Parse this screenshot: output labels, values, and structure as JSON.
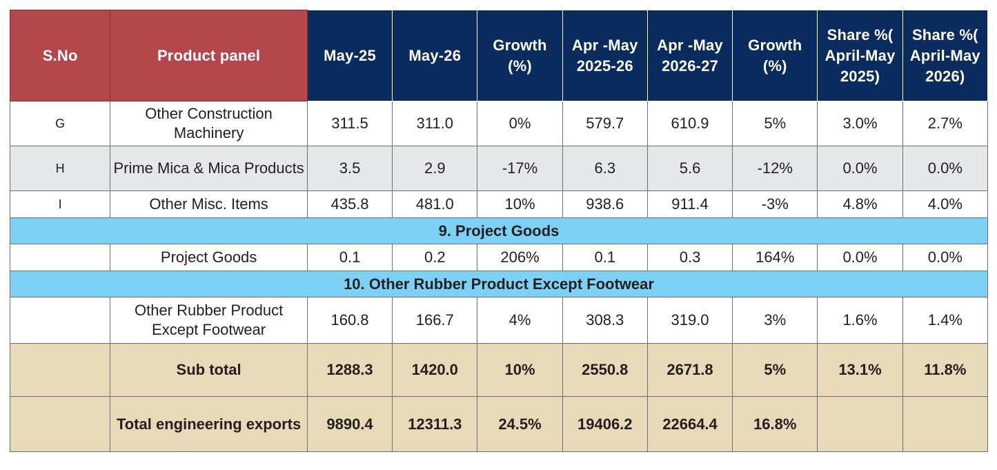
{
  "header": {
    "sno": "S.No",
    "product": "Product panel",
    "may25": "May-25",
    "may26": "May-26",
    "growth1": "Growth (%)",
    "aprmay2526": "Apr -May 2025-26",
    "aprmay2627": "Apr -May 2026-27",
    "growth2": "Growth (%)",
    "share2025": "Share %( April-May 2025)",
    "share2026": "Share %( April-May 2026)"
  },
  "rows": [
    {
      "sno": "G",
      "product": "Other Construction Machinery",
      "may25": "311.5",
      "may26": "311.0",
      "growth1": "0%",
      "aprmay2526": "579.7",
      "aprmay2627": "610.9",
      "growth2": "5%",
      "share2025": "3.0%",
      "share2026": "2.7%"
    },
    {
      "sno": "H",
      "product": "Prime Mica & Mica Products",
      "may25": "3.5",
      "may26": "2.9",
      "growth1": "-17%",
      "aprmay2526": "6.3",
      "aprmay2627": "5.6",
      "growth2": "-12%",
      "share2025": "0.0%",
      "share2026": "0.0%"
    },
    {
      "sno": "I",
      "product": "Other Misc. Items",
      "may25": "435.8",
      "may26": "481.0",
      "growth1": "10%",
      "aprmay2526": "938.6",
      "aprmay2627": "911.4",
      "growth2": "-3%",
      "share2025": "4.8%",
      "share2026": "4.0%"
    }
  ],
  "section9": {
    "title": "9. Project Goods",
    "row": {
      "sno": "",
      "product": "Project Goods",
      "may25": "0.1",
      "may26": "0.2",
      "growth1": "206%",
      "aprmay2526": "0.1",
      "aprmay2627": "0.3",
      "growth2": "164%",
      "share2025": "0.0%",
      "share2026": "0.0%"
    }
  },
  "section10": {
    "title": "10. Other Rubber Product Except Footwear",
    "row": {
      "sno": "",
      "product": "Other Rubber Product Except Footwear",
      "may25": "160.8",
      "may26": "166.7",
      "growth1": "4%",
      "aprmay2526": "308.3",
      "aprmay2627": "319.0",
      "growth2": "3%",
      "share2025": "1.6%",
      "share2026": "1.4%"
    }
  },
  "subtotal": {
    "sno": "",
    "product": "Sub total",
    "may25": "1288.3",
    "may26": "1420.0",
    "growth1": "10%",
    "aprmay2526": "2550.8",
    "aprmay2627": "2671.8",
    "growth2": "5%",
    "share2025": "13.1%",
    "share2026": "11.8%"
  },
  "total": {
    "sno": "",
    "product": "Total engineering exports",
    "may25": "9890.4",
    "may26": "12311.3",
    "growth1": "24.5%",
    "aprmay2526": "19406.2",
    "aprmay2627": "22664.4",
    "growth2": "16.8%",
    "share2025": "",
    "share2026": ""
  },
  "colors": {
    "header_red": "#b5464b",
    "header_navy": "#0a2b5e",
    "section_blue": "#7dd1f5",
    "total_beige": "#e8d9b8",
    "row_grey": "#e6e7e8"
  }
}
